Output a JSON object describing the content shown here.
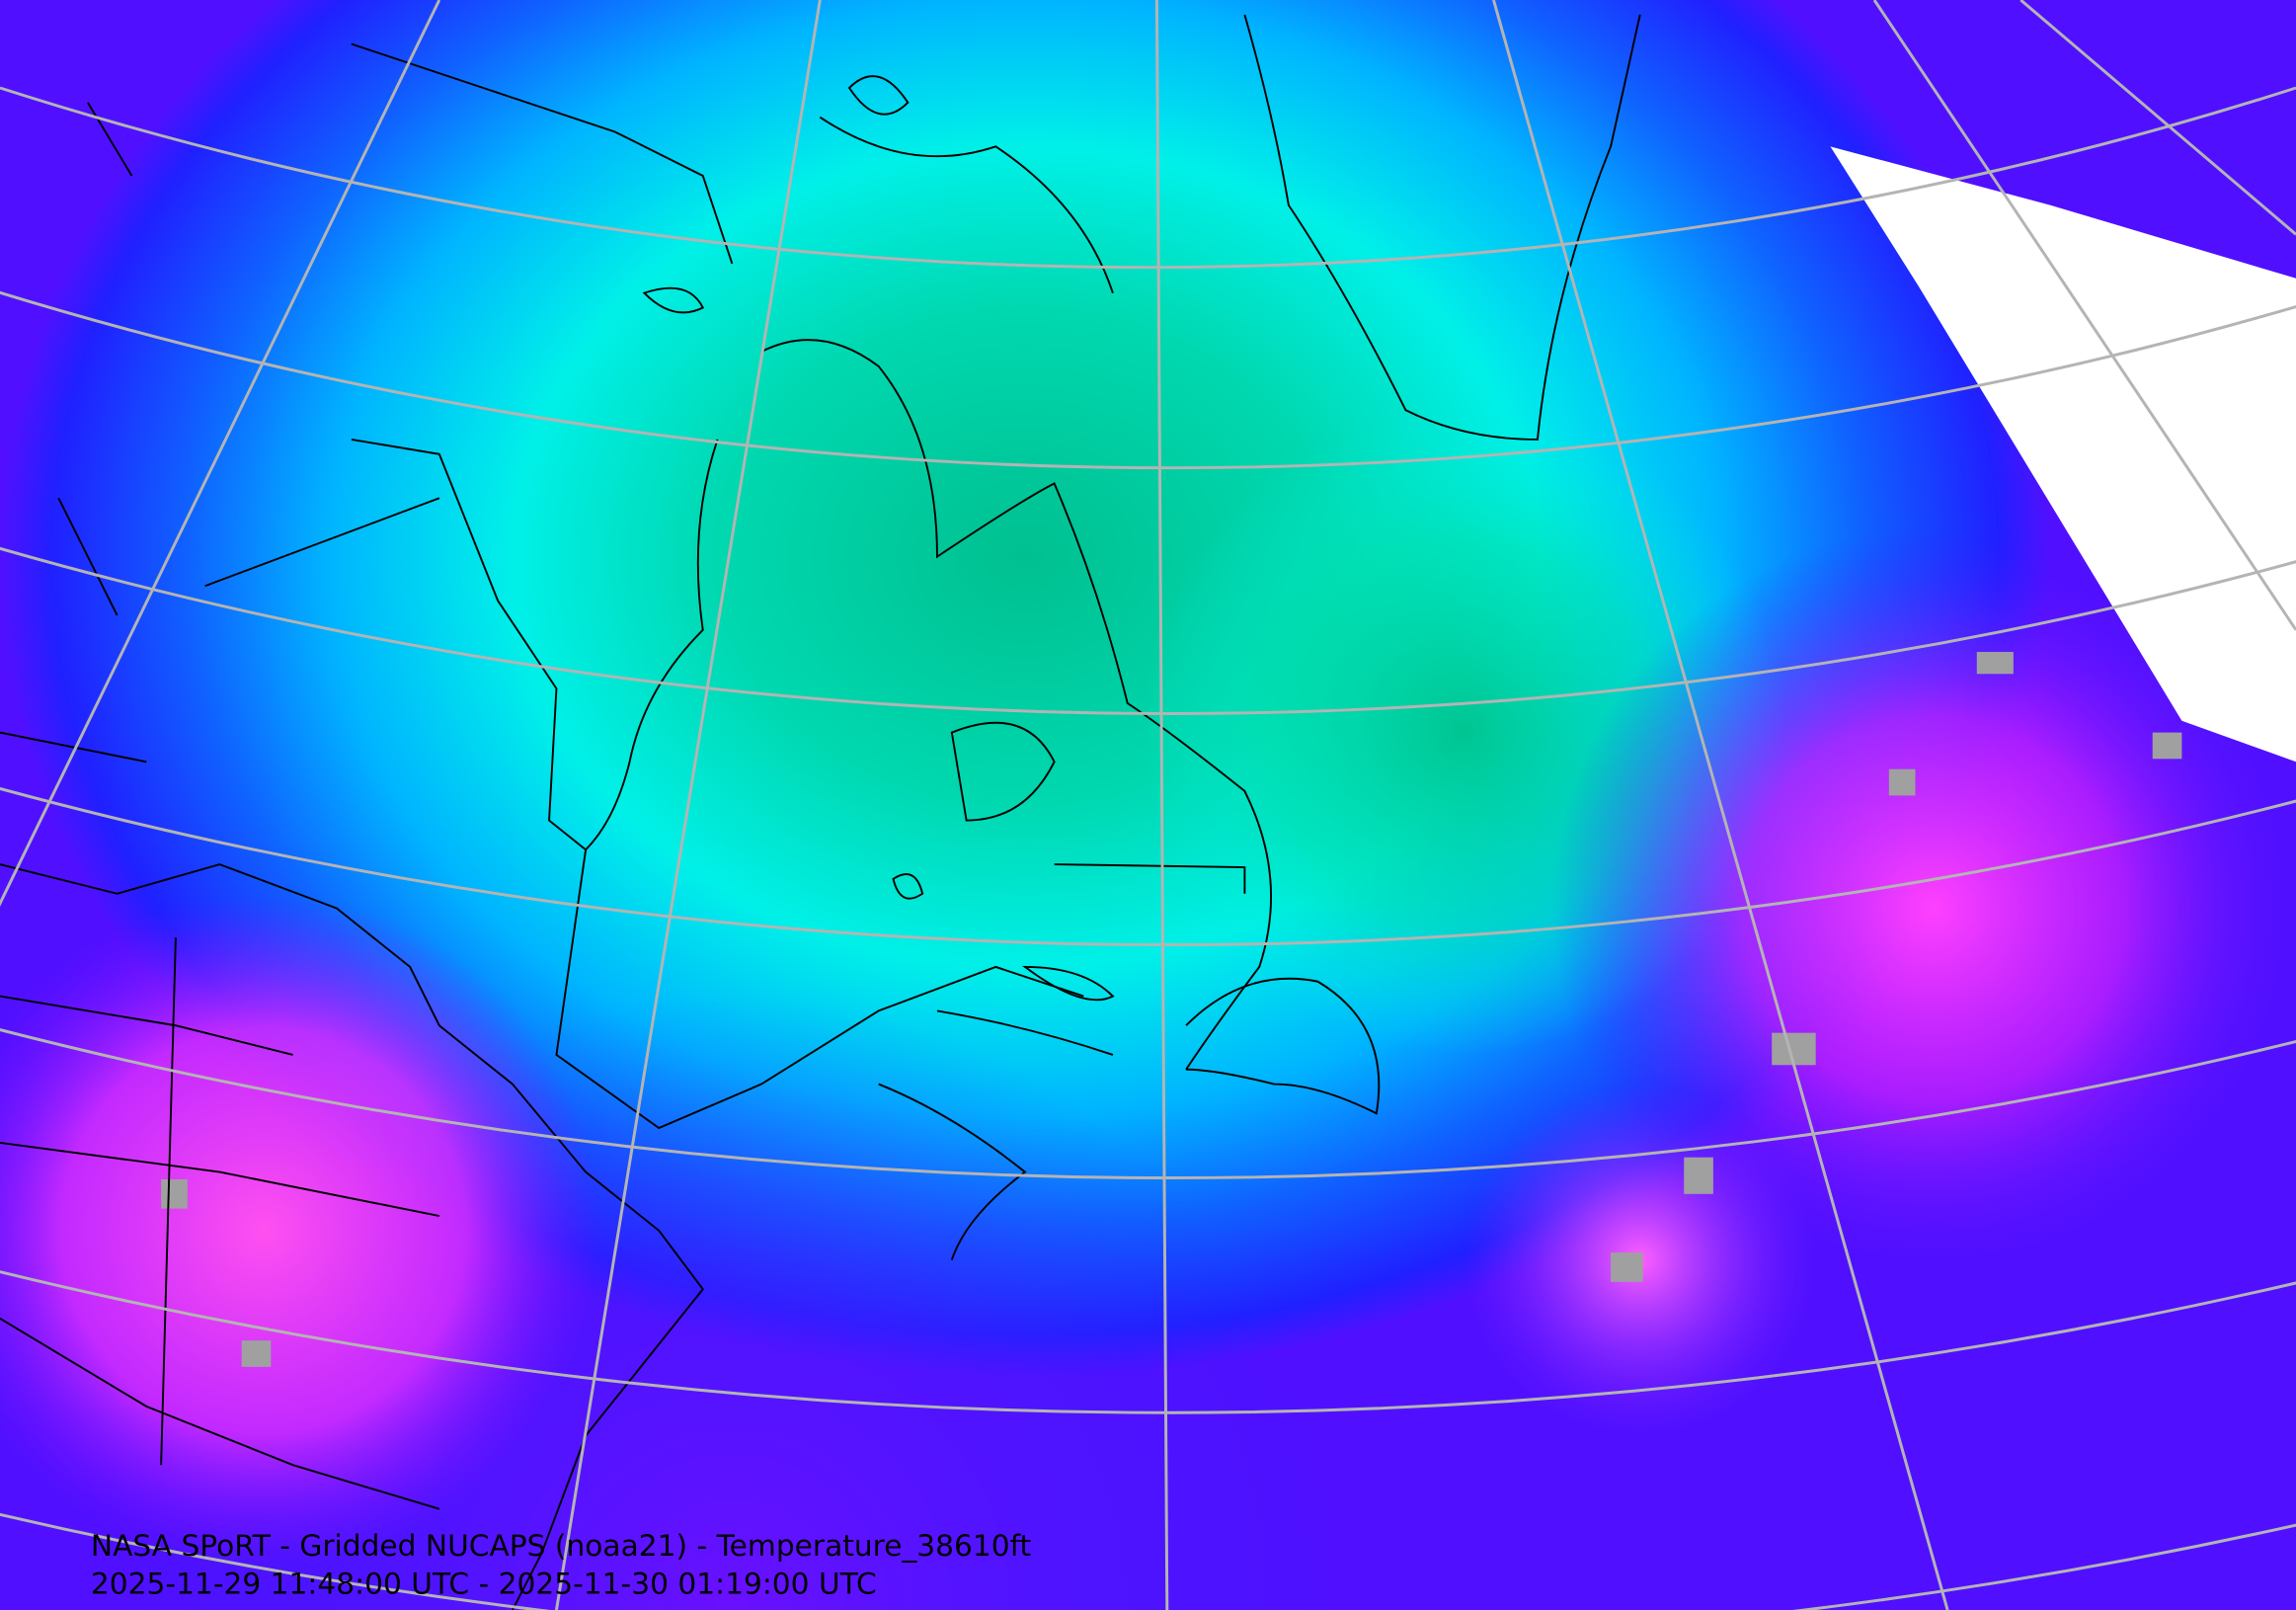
{
  "caption": {
    "title": "NASA SPoRT - Gridded NUCAPS (noaa21) - Temperature_38610ft",
    "time_range": "2025-11-29 11:48:00 UTC - 2025-11-30 01:19:00 UTC"
  }
}
